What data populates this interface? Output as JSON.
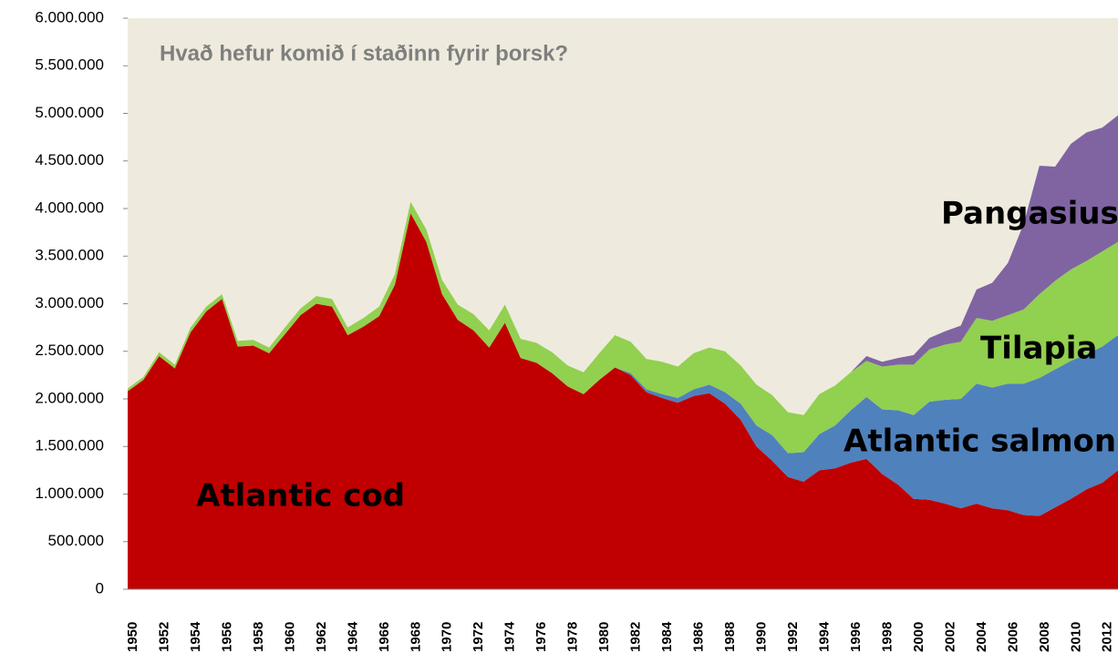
{
  "chart_data": {
    "type": "stacked-area",
    "title": "Hvað hefur komið í staðinn fyrir þorsk?",
    "categories": [
      "1950",
      null,
      "1952",
      null,
      "1954",
      null,
      "1956",
      null,
      "1958",
      null,
      "1960",
      null,
      "1962",
      null,
      "1964",
      null,
      "1966",
      null,
      "1968",
      null,
      "1970",
      null,
      "1972",
      null,
      "1974",
      null,
      "1976",
      null,
      "1978",
      null,
      "1980",
      null,
      "1982",
      null,
      "1984",
      null,
      "1986",
      null,
      "1988",
      null,
      "1990",
      null,
      "1992",
      null,
      "1994",
      null,
      "1996",
      null,
      "1998",
      null,
      "2000",
      null,
      "2002",
      null,
      "2004",
      null,
      "2006",
      null,
      "2008",
      null,
      "2010",
      null,
      "2012",
      null
    ],
    "series": [
      {
        "name": "Atlantic cod",
        "color": "#c00000",
        "values": [
          2080000,
          2200000,
          2450000,
          2320000,
          2700000,
          2920000,
          3050000,
          2550000,
          2560000,
          2480000,
          2680000,
          2880000,
          3000000,
          2970000,
          2670000,
          2760000,
          2870000,
          3200000,
          3950000,
          3650000,
          3100000,
          2830000,
          2720000,
          2540000,
          2800000,
          2430000,
          2380000,
          2270000,
          2130000,
          2050000,
          2200000,
          2330000,
          2250000,
          2070000,
          2010000,
          1960000,
          2030000,
          2060000,
          1950000,
          1780000,
          1500000,
          1350000,
          1180000,
          1130000,
          1250000,
          1270000,
          1330000,
          1370000,
          1210000,
          1100000,
          950000,
          940000,
          900000,
          850000,
          900000,
          850000,
          830000,
          780000,
          770000,
          860000,
          950000,
          1050000,
          1120000,
          1250000
        ]
      },
      {
        "name": "Atlantic salmon",
        "color": "#4f81bd",
        "values": [
          0,
          0,
          0,
          0,
          0,
          0,
          0,
          0,
          0,
          0,
          0,
          0,
          0,
          0,
          0,
          0,
          0,
          0,
          0,
          0,
          0,
          0,
          0,
          0,
          0,
          0,
          0,
          0,
          0,
          0,
          0,
          0,
          20000,
          30000,
          40000,
          50000,
          70000,
          90000,
          120000,
          170000,
          220000,
          270000,
          250000,
          310000,
          380000,
          450000,
          550000,
          650000,
          680000,
          780000,
          880000,
          1030000,
          1090000,
          1150000,
          1260000,
          1270000,
          1330000,
          1380000,
          1450000,
          1450000,
          1450000,
          1420000,
          1430000,
          1420000
        ]
      },
      {
        "name": "Tilapia",
        "color": "#92d050",
        "values": [
          30000,
          30000,
          40000,
          40000,
          50000,
          50000,
          50000,
          60000,
          60000,
          60000,
          70000,
          70000,
          80000,
          80000,
          80000,
          90000,
          100000,
          110000,
          120000,
          130000,
          150000,
          160000,
          170000,
          180000,
          190000,
          200000,
          210000,
          220000,
          220000,
          230000,
          280000,
          340000,
          330000,
          320000,
          340000,
          330000,
          380000,
          390000,
          430000,
          400000,
          430000,
          420000,
          430000,
          390000,
          420000,
          420000,
          400000,
          380000,
          450000,
          480000,
          530000,
          550000,
          580000,
          600000,
          690000,
          700000,
          720000,
          780000,
          880000,
          930000,
          960000,
          980000,
          1000000,
          980000
        ]
      },
      {
        "name": "Pangasius",
        "color": "#8064a2",
        "values": [
          0,
          0,
          0,
          0,
          0,
          0,
          0,
          0,
          0,
          0,
          0,
          0,
          0,
          0,
          0,
          0,
          0,
          0,
          0,
          0,
          0,
          0,
          0,
          0,
          0,
          0,
          0,
          0,
          0,
          0,
          0,
          0,
          0,
          0,
          0,
          0,
          0,
          0,
          0,
          0,
          0,
          0,
          0,
          0,
          0,
          0,
          0,
          50000,
          50000,
          70000,
          100000,
          120000,
          140000,
          170000,
          300000,
          400000,
          550000,
          900000,
          1350000,
          1200000,
          1320000,
          1350000,
          1300000,
          1330000
        ]
      }
    ],
    "ylim": [
      0,
      6000000
    ],
    "yticks": [
      0,
      {
        "value": 500000,
        "label": "500.000"
      },
      {
        "value": 1000000,
        "label": "1.000.000"
      },
      {
        "value": 1500000,
        "label": "1.500.000"
      },
      {
        "value": 2000000,
        "label": "2.000.000"
      },
      {
        "value": 2500000,
        "label": "2.500.000"
      },
      {
        "value": 3000000,
        "label": "3.000.000"
      },
      {
        "value": 3500000,
        "label": "3.500.000"
      },
      {
        "value": 4000000,
        "label": "4.000.000"
      },
      {
        "value": 4500000,
        "label": "4.500.000"
      },
      {
        "value": 5000000,
        "label": "5.000.000"
      },
      {
        "value": 5500000,
        "label": "5.500.000"
      },
      {
        "value": 6000000,
        "label": "6.000.000"
      }
    ],
    "background": "#eeebde"
  }
}
